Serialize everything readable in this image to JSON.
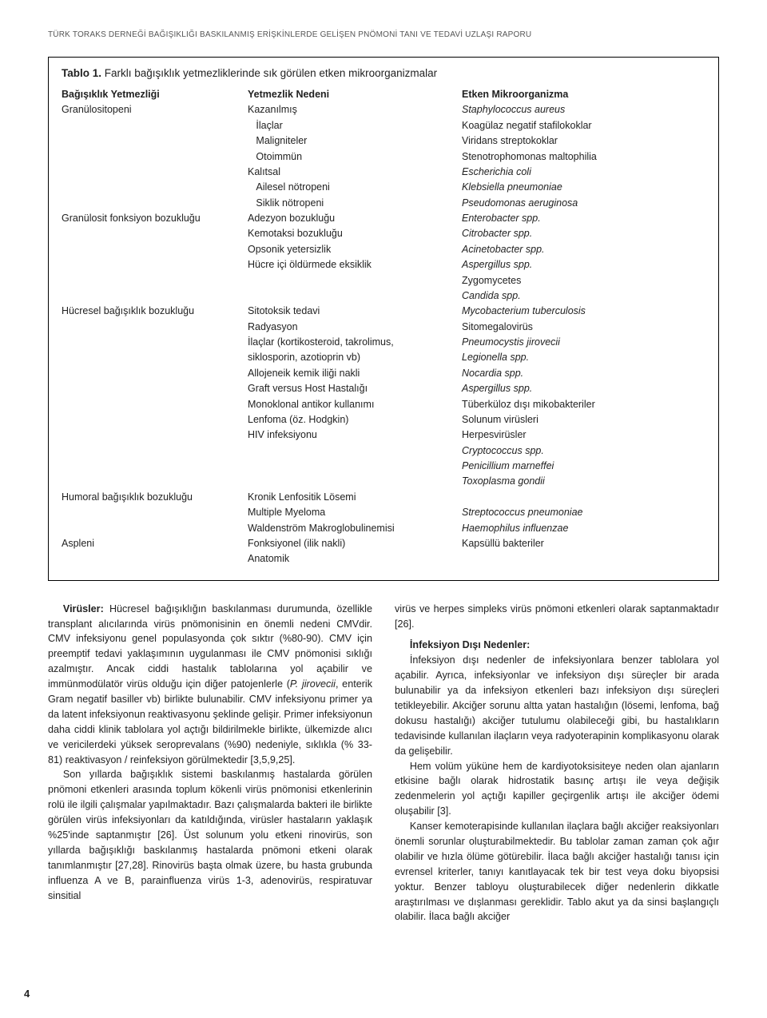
{
  "running_head": "TÜRK TORAKS DERNEĞİ BAĞIŞIKLIĞI BASKILANMIŞ ERİŞKİNLERDE GELİŞEN PNÖMONİ TANI VE TEDAVİ UZLAŞI RAPORU",
  "page_number": "4",
  "table": {
    "title_label": "Tablo 1.",
    "title_rest": " Farklı bağışıklık yetmezliklerinde sık görülen etken mikroorganizmalar",
    "head": [
      "Bağışıklık Yetmezliği",
      "Yetmezlik Nedeni",
      "Etken Mikroorganizma"
    ],
    "rows": [
      [
        "Granülositopeni",
        "Kazanılmış",
        "Staphylococcus aureus"
      ],
      [
        "",
        "   İlaçlar",
        "Koagülaz negatif stafilokoklar"
      ],
      [
        "",
        "   Maligniteler",
        "Viridans streptokoklar"
      ],
      [
        "",
        "   Otoimmün",
        "Stenotrophomonas maltophilia"
      ],
      [
        "",
        "Kalıtsal",
        "Escherichia coli"
      ],
      [
        "",
        "   Ailesel nötropeni",
        "Klebsiella pneumoniae"
      ],
      [
        "",
        "   Siklik nötropeni",
        "Pseudomonas aeruginosa"
      ],
      [
        "Granülosit fonksiyon bozukluğu",
        "Adezyon bozukluğu",
        "Enterobacter spp."
      ],
      [
        "",
        "Kemotaksi bozukluğu",
        "Citrobacter spp."
      ],
      [
        "",
        "Opsonik yetersizlik",
        "Acinetobacter spp."
      ],
      [
        "",
        "Hücre içi öldürmede eksiklik",
        "Aspergillus spp."
      ],
      [
        "",
        "",
        "Zygomycetes"
      ],
      [
        "",
        "",
        "Candida spp."
      ],
      [
        "Hücresel bağışıklık bozukluğu",
        "Sitotoksik tedavi",
        "Mycobacterium tuberculosis"
      ],
      [
        "",
        "Radyasyon",
        "Sitomegalovirüs"
      ],
      [
        "",
        "İlaçlar (kortikosteroid, takrolimus,",
        "Pneumocystis jirovecii"
      ],
      [
        "",
        "siklosporin, azotioprin vb)",
        "Legionella spp."
      ],
      [
        "",
        "Allojeneik kemik iliği nakli",
        "Nocardia spp."
      ],
      [
        "",
        "Graft versus Host Hastalığı",
        "Aspergillus spp."
      ],
      [
        "",
        "Monoklonal antikor kullanımı",
        "Tüberküloz dışı mikobakteriler"
      ],
      [
        "",
        "Lenfoma (öz. Hodgkin)",
        "Solunum virüsleri"
      ],
      [
        "",
        "HIV infeksiyonu",
        "Herpesvirüsler"
      ],
      [
        "",
        "",
        "Cryptococcus spp."
      ],
      [
        "",
        "",
        "Penicillium marneffei"
      ],
      [
        "",
        "",
        "Toxoplasma gondii"
      ],
      [
        "Humoral bağışıklık bozukluğu",
        "Kronik Lenfositik Lösemi",
        ""
      ],
      [
        "",
        "Multiple Myeloma",
        "Streptococcus pneumoniae"
      ],
      [
        "",
        "Waldenström Makroglobulinemisi",
        "Haemophilus influenzae"
      ],
      [
        "Aspleni",
        "Fonksiyonel (ilik nakli)",
        "Kapsüllü bakteriler"
      ],
      [
        "",
        "Anatomik",
        ""
      ]
    ]
  },
  "italic_col3": {
    "0": true,
    "4": true,
    "5": true,
    "6": true,
    "7": true,
    "8": true,
    "9": true,
    "10": true,
    "12": true,
    "13": true,
    "15": true,
    "16": true,
    "17": true,
    "18": true,
    "22": true,
    "23": true,
    "24": true,
    "26": true,
    "27": true
  },
  "body": {
    "p1_lead": "Virüsler:",
    "p1": " Hücresel bağışıklığın baskılanması durumunda, özellikle transplant alıcılarında virüs pnömonisinin en önemli nedeni CMVdir. CMV infeksiyonu genel populasyonda çok sıktır (%80-90). CMV için preemptif tedavi yaklaşımının uygulanması ile CMV pnömonisi sıklığı azalmıştır. Ancak ciddi hastalık tablolarına yol açabilir ve immünmodülatör virüs olduğu için diğer patojenlerle (",
    "p1_italic": "P. jirovecii",
    "p1_tail": ", enterik Gram negatif basiller vb) birlikte bulunabilir. CMV infeksiyonu primer ya da latent infeksiyonun reaktivasyonu şeklinde gelişir. Primer infeksiyonun daha ciddi klinik tablolara yol açtığı bildirilmekle birlikte, ülkemizde alıcı ve vericilerdeki yüksek seroprevalans (%90) nedeniyle, sıklıkla (% 33-81) reaktivasyon / reinfeksiyon görülmektedir [3,5,9,25].",
    "p2": "Son yıllarda bağışıklık sistemi baskılanmış hastalarda görülen pnömoni etkenleri arasında toplum kökenli virüs pnömonisi etkenlerinin rolü ile ilgili çalışmalar yapılmaktadır. Bazı çalışmalarda bakteri ile birlikte görülen virüs infeksiyonları da katıldığında, virüsler hastaların yaklaşık %25'inde saptanmıştır [26]. Üst solunum yolu etkeni rinovirüs, son yıllarda bağışıklığı baskılanmış hastalarda pnömoni etkeni olarak tanımlanmıştır [27,28]. Rinovirüs başta olmak üzere, bu hasta grubunda influenza A ve B, parainfluenza virüs 1-3, adenovirüs, respiratuvar sinsitial",
    "p3": "virüs ve herpes simpleks virüs pnömoni etkenleri olarak saptanmaktadır [26].",
    "h1": "İnfeksiyon Dışı Nedenler:",
    "p4": "İnfeksiyon dışı nedenler de infeksiyonlara benzer tablolara yol açabilir. Ayrıca, infeksiyonlar ve infeksiyon dışı süreçler bir arada bulunabilir ya da infeksiyon etkenleri bazı infeksiyon dışı süreçleri tetikleyebilir. Akciğer sorunu altta yatan hastalığın (lösemi, lenfoma, bağ dokusu hastalığı) akciğer tutulumu olabileceği gibi, bu hastalıkların tedavisinde kullanılan ilaçların veya radyoterapinin komplikasyonu olarak da gelişebilir.",
    "p5": "Hem volüm yüküne hem de kardiyotoksisiteye neden olan ajanların etkisine bağlı olarak hidrostatik basınç artışı ile veya değişik zedenmelerin yol açtığı kapiller geçirgenlik artışı ile akciğer ödemi oluşabilir [3].",
    "p6": "Kanser kemoterapisinde kullanılan ilaçlara bağlı akciğer reaksiyonları önemli sorunlar oluşturabilmektedir. Bu tablolar zaman zaman çok ağır olabilir ve hızla ölüme götürebilir. İlaca bağlı akciğer hastalığı tanısı için evrensel kriterler, tanıyı kanıtlayacak tek bir test veya doku biyopsisi yoktur. Benzer tabloyu oluşturabilecek diğer nedenlerin dikkatle araştırılması ve dışlanması gereklidir. Tablo akut ya da sinsi başlangıçlı olabilir. İlaca bağlı akciğer"
  }
}
